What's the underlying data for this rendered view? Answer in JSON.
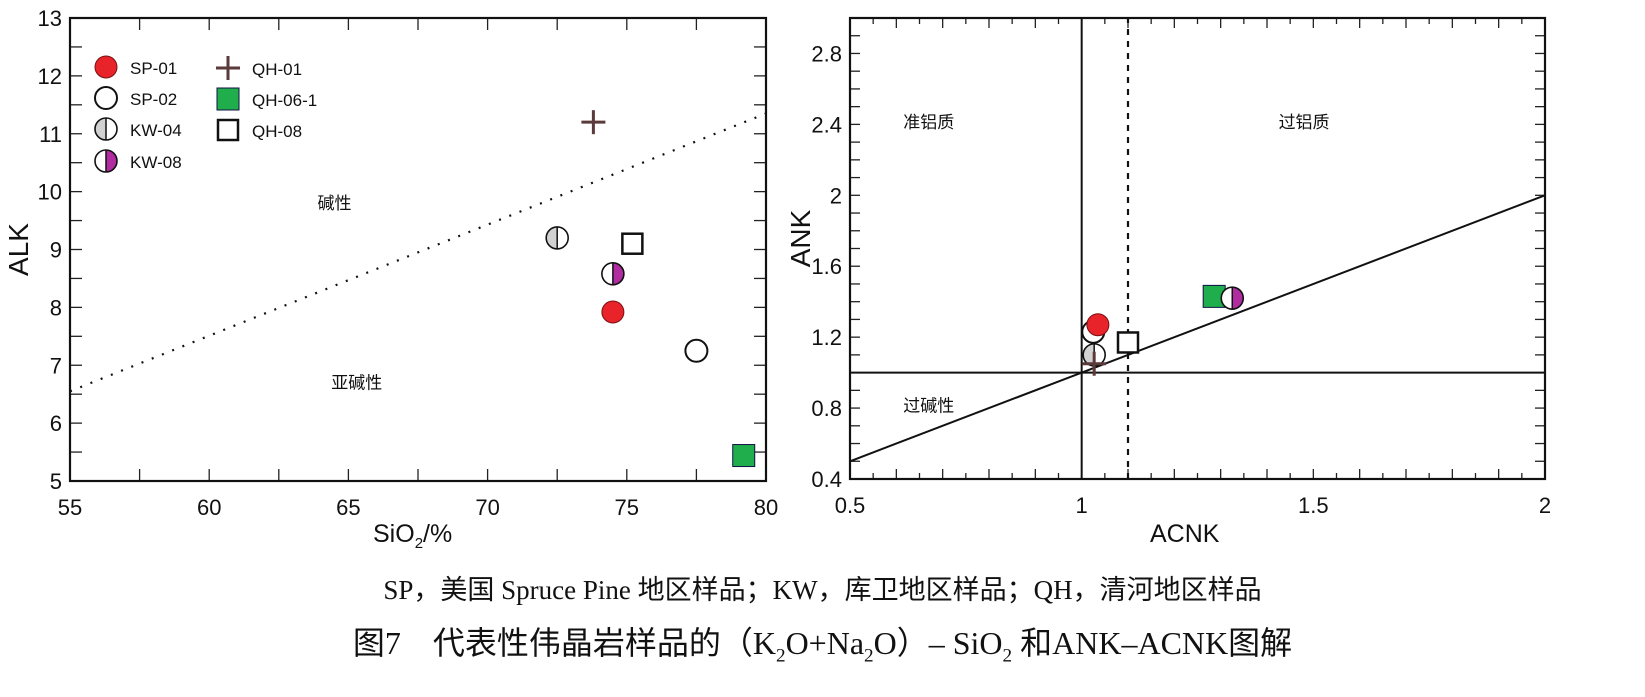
{
  "chart_data": [
    {
      "type": "scatter",
      "xlabel_parts": [
        "SiO",
        "2",
        "/%"
      ],
      "ylabel": "ALK",
      "xlim": [
        55,
        80
      ],
      "ylim": [
        5,
        13
      ],
      "x_ticks": [
        55,
        60,
        65,
        70,
        75,
        80
      ],
      "y_ticks": [
        5,
        6,
        7,
        8,
        9,
        10,
        11,
        12,
        13
      ],
      "grid": false,
      "legend_placement": "top-left",
      "boundary_lines": [
        {
          "style": "dotted",
          "x": [
            55,
            80
          ],
          "y": [
            6.55,
            11.35
          ]
        }
      ],
      "region_labels": [
        {
          "text": "碱性",
          "x": 64.5,
          "y": 9.7
        },
        {
          "text": "亚碱性",
          "x": 65.3,
          "y": 6.6
        }
      ],
      "series": [
        {
          "name": "SP-01",
          "marker": "circle-red",
          "x": [
            74.5
          ],
          "y": [
            7.92
          ]
        },
        {
          "name": "SP-02",
          "marker": "circle-open",
          "x": [
            77.5
          ],
          "y": [
            7.25
          ]
        },
        {
          "name": "KW-04",
          "marker": "circle-half-gray",
          "x": [
            72.5
          ],
          "y": [
            9.2
          ]
        },
        {
          "name": "KW-08",
          "marker": "circle-half-magenta",
          "x": [
            74.5
          ],
          "y": [
            8.58
          ]
        },
        {
          "name": "QH-01",
          "marker": "cross",
          "x": [
            73.8
          ],
          "y": [
            11.2
          ]
        },
        {
          "name": "QH-06-1",
          "marker": "square-green",
          "x": [
            79.2
          ],
          "y": [
            5.44
          ]
        },
        {
          "name": "QH-08",
          "marker": "square-open",
          "x": [
            75.2
          ],
          "y": [
            9.1
          ]
        }
      ]
    },
    {
      "type": "scatter",
      "xlabel": "ACNK",
      "ylabel": "ANK",
      "xlim": [
        0.5,
        2
      ],
      "ylim": [
        0.4,
        3.0
      ],
      "x_ticks": [
        "0.5",
        "1",
        "1.5",
        "2"
      ],
      "y_ticks": [
        "0.4",
        "0.8",
        "1.2",
        "1.6",
        "2",
        "2.4",
        "2.8"
      ],
      "grid": false,
      "boundary_lines": [
        {
          "style": "solid",
          "x": [
            1,
            1
          ],
          "y": [
            0.4,
            3.0
          ]
        },
        {
          "style": "dashed",
          "x": [
            1.1,
            1.1
          ],
          "y": [
            0.4,
            3.0
          ]
        },
        {
          "style": "solid",
          "x": [
            0.5,
            2
          ],
          "y": [
            1,
            1
          ]
        },
        {
          "style": "solid",
          "x": [
            0.5,
            2
          ],
          "y": [
            0.5,
            2
          ]
        }
      ],
      "region_labels": [
        {
          "text": "准铝质",
          "x": 0.67,
          "y": 2.38
        },
        {
          "text": "过铝质",
          "x": 1.48,
          "y": 2.38
        },
        {
          "text": "过碱性",
          "x": 0.67,
          "y": 0.78
        }
      ],
      "series": [
        {
          "name": "SP-02",
          "marker": "circle-open",
          "x": [
            1.025
          ],
          "y": [
            1.23
          ]
        },
        {
          "name": "SP-01",
          "marker": "circle-red",
          "x": [
            1.035
          ],
          "y": [
            1.27
          ]
        },
        {
          "name": "KW-04",
          "marker": "circle-half-gray",
          "x": [
            1.027
          ],
          "y": [
            1.1
          ]
        },
        {
          "name": "QH-01",
          "marker": "cross",
          "x": [
            1.027
          ],
          "y": [
            1.05
          ]
        },
        {
          "name": "QH-08",
          "marker": "square-open",
          "x": [
            1.1
          ],
          "y": [
            1.17
          ]
        },
        {
          "name": "QH-06-1",
          "marker": "square-green",
          "x": [
            1.286
          ],
          "y": [
            1.43
          ]
        },
        {
          "name": "KW-08",
          "marker": "circle-half-magenta",
          "x": [
            1.325
          ],
          "y": [
            1.42
          ]
        }
      ]
    }
  ],
  "colors": {
    "red": "#e8232a",
    "green": "#1fae4b",
    "magenta": "#b02ca0",
    "gray": "#d2d2d2",
    "cross": "#5a3a3a"
  },
  "caption": {
    "note": "SP，美国 Spruce Pine 地区样品；KW，库卫地区样品；QH，清河地区样品",
    "title_parts": [
      "图7　代表性伟晶岩样品的（K",
      "2",
      "O+Na",
      "2",
      "O）– SiO",
      "2",
      " 和ANK–ACNK图解"
    ]
  }
}
